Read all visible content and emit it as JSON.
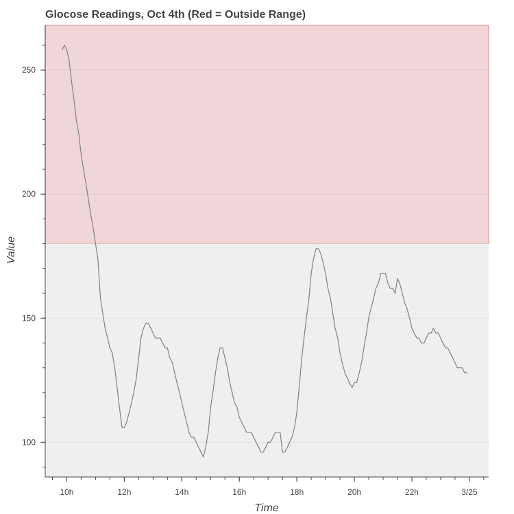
{
  "chart_data": {
    "type": "line",
    "title": "Glocose Readings, Oct 4th (Red = Outside Range)",
    "xlabel": "Time",
    "ylabel": "Value",
    "xlim": [
      9.25,
      24.67
    ],
    "ylim": [
      86,
      268
    ],
    "x_ticks": [
      {
        "value": 10,
        "label": "10h"
      },
      {
        "value": 12,
        "label": "12h"
      },
      {
        "value": 14,
        "label": "14h"
      },
      {
        "value": 16,
        "label": "16h"
      },
      {
        "value": 18,
        "label": "18h"
      },
      {
        "value": 20,
        "label": "20h"
      },
      {
        "value": 22,
        "label": "22h"
      },
      {
        "value": 24,
        "label": "3/25"
      }
    ],
    "x_minor_step": 0.5,
    "y_ticks": [
      {
        "value": 100,
        "label": "100"
      },
      {
        "value": 150,
        "label": "150"
      },
      {
        "value": 200,
        "label": "200"
      },
      {
        "value": 250,
        "label": "250"
      }
    ],
    "y_minor_step": 10,
    "grid": true,
    "bands": [
      {
        "from": 180,
        "to": 268,
        "color": "#f0d6d8",
        "border": "#e8a6a8"
      },
      {
        "from": 86,
        "to": 180,
        "color": "#efefef",
        "border": ""
      }
    ],
    "series": [
      {
        "color": "#808080",
        "x": [
          9.83,
          9.92,
          10.0,
          10.08,
          10.17,
          10.25,
          10.33,
          10.42,
          10.5,
          10.58,
          10.67,
          10.75,
          10.83,
          10.92,
          11.0,
          11.08,
          11.17,
          11.25,
          11.33,
          11.42,
          11.5,
          11.58,
          11.67,
          11.75,
          11.83,
          11.92,
          12.0,
          12.08,
          12.17,
          12.25,
          12.33,
          12.42,
          12.5,
          12.58,
          12.67,
          12.75,
          12.83,
          12.92,
          13.0,
          13.08,
          13.17,
          13.25,
          13.33,
          13.42,
          13.5,
          13.58,
          13.67,
          13.75,
          13.83,
          13.92,
          14.0,
          14.08,
          14.17,
          14.25,
          14.33,
          14.42,
          14.5,
          14.58,
          14.67,
          14.75,
          14.83,
          14.92,
          15.0,
          15.08,
          15.17,
          15.25,
          15.33,
          15.42,
          15.5,
          15.58,
          15.67,
          15.75,
          15.83,
          15.92,
          16.0,
          16.08,
          16.17,
          16.25,
          16.33,
          16.42,
          16.5,
          16.58,
          16.67,
          16.75,
          16.83,
          16.92,
          17.0,
          17.08,
          17.17,
          17.25,
          17.33,
          17.42,
          17.5,
          17.58,
          17.67,
          17.75,
          17.83,
          17.92,
          18.0,
          18.08,
          18.17,
          18.25,
          18.33,
          18.42,
          18.5,
          18.58,
          18.67,
          18.75,
          18.83,
          18.92,
          19.0,
          19.08,
          19.17,
          19.25,
          19.33,
          19.42,
          19.5,
          19.58,
          19.67,
          19.75,
          19.83,
          19.92,
          20.0,
          20.08,
          20.17,
          20.25,
          20.33,
          20.42,
          20.5,
          20.58,
          20.67,
          20.75,
          20.83,
          20.92,
          21.0,
          21.08,
          21.17,
          21.25,
          21.33,
          21.42,
          21.5,
          21.58,
          21.67,
          21.75,
          21.83,
          21.92,
          22.0,
          22.08,
          22.17,
          22.25,
          22.33,
          22.42,
          22.5,
          22.58,
          22.67,
          22.75,
          22.83,
          22.92,
          23.0,
          23.08,
          23.17,
          23.25,
          23.33,
          23.42,
          23.5,
          23.58,
          23.67,
          23.75,
          23.83,
          23.92
        ],
        "values": [
          258,
          260,
          258,
          254,
          245,
          238,
          230,
          224,
          216,
          210,
          204,
          198,
          192,
          186,
          180,
          174,
          158,
          152,
          146,
          142,
          138,
          136,
          130,
          122,
          114,
          106,
          106,
          108,
          112,
          116,
          120,
          126,
          134,
          142,
          146,
          148,
          148,
          146,
          144,
          142,
          142,
          142,
          140,
          138,
          138,
          134,
          132,
          128,
          124,
          120,
          116,
          112,
          108,
          104,
          102,
          102,
          100,
          98,
          96,
          94,
          98,
          104,
          114,
          120,
          128,
          134,
          138,
          138,
          134,
          130,
          124,
          120,
          116,
          114,
          110,
          108,
          106,
          104,
          104,
          104,
          102,
          100,
          98,
          96,
          96,
          98,
          100,
          100,
          102,
          104,
          104,
          104,
          96,
          96,
          98,
          100,
          102,
          106,
          112,
          122,
          134,
          142,
          150,
          158,
          168,
          174,
          178,
          178,
          176,
          172,
          168,
          162,
          158,
          152,
          146,
          142,
          136,
          132,
          128,
          126,
          124,
          122,
          124,
          124,
          128,
          132,
          138,
          144,
          150,
          154,
          158,
          162,
          164,
          168,
          168,
          168,
          164,
          162,
          162,
          160,
          166,
          164,
          160,
          156,
          154,
          150,
          146,
          144,
          142,
          142,
          140,
          140,
          142,
          144,
          144,
          146,
          144,
          144,
          142,
          140,
          138,
          138,
          136,
          134,
          132,
          130,
          130,
          130,
          128,
          128
        ]
      }
    ]
  }
}
